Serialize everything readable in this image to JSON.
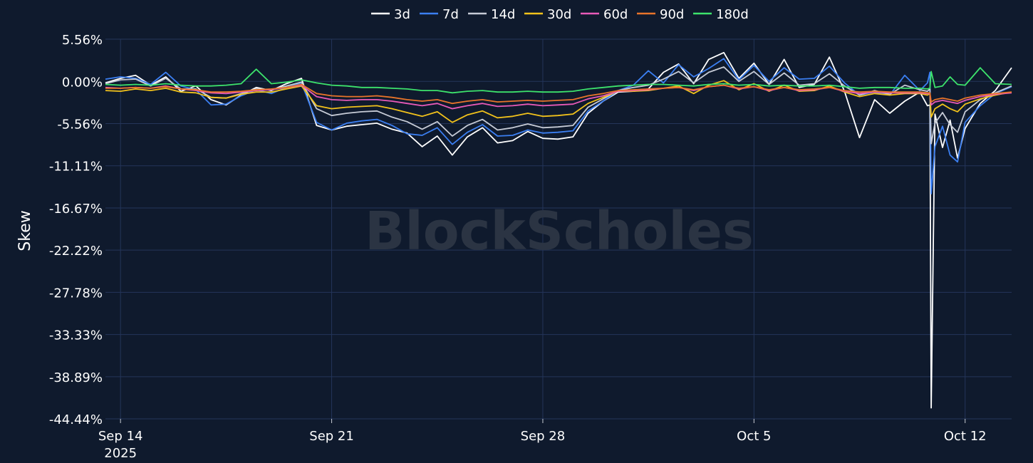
{
  "chart_data": {
    "type": "line",
    "ylabel": "Skew",
    "watermark": "BlockScholes",
    "legend_position": "top-center",
    "grid": true,
    "ylim": [
      -44.44,
      5.56
    ],
    "xlim": [
      "2025-09-13T12:00",
      "2025-10-13T13:00"
    ],
    "y_ticks": [
      {
        "value": 5.56,
        "label": "5.56%"
      },
      {
        "value": 0.0,
        "label": "0.00%"
      },
      {
        "value": -5.56,
        "label": "-5.56%"
      },
      {
        "value": -11.11,
        "label": "-11.11%"
      },
      {
        "value": -16.67,
        "label": "-16.67%"
      },
      {
        "value": -22.22,
        "label": "-22.22%"
      },
      {
        "value": -27.78,
        "label": "-27.78%"
      },
      {
        "value": -33.33,
        "label": "-33.33%"
      },
      {
        "value": -38.89,
        "label": "-38.89%"
      },
      {
        "value": -44.44,
        "label": "-44.44%"
      }
    ],
    "x_ticks": [
      {
        "value": "2025-09-14",
        "label": "Sep 14",
        "sublabel": "2025"
      },
      {
        "value": "2025-09-21",
        "label": "Sep 21"
      },
      {
        "value": "2025-09-28",
        "label": "Sep 28"
      },
      {
        "value": "2025-10-05",
        "label": "Oct 5"
      },
      {
        "value": "2025-10-12",
        "label": "Oct 12"
      }
    ],
    "x": [
      "2025-09-13T12:00",
      "2025-09-14T00:00",
      "2025-09-14T12:00",
      "2025-09-15T00:00",
      "2025-09-15T12:00",
      "2025-09-16T00:00",
      "2025-09-16T12:00",
      "2025-09-17T00:00",
      "2025-09-17T12:00",
      "2025-09-18T00:00",
      "2025-09-18T12:00",
      "2025-09-19T00:00",
      "2025-09-19T12:00",
      "2025-09-20T00:00",
      "2025-09-20T12:00",
      "2025-09-21T00:00",
      "2025-09-21T12:00",
      "2025-09-22T00:00",
      "2025-09-22T12:00",
      "2025-09-23T00:00",
      "2025-09-23T12:00",
      "2025-09-24T00:00",
      "2025-09-24T12:00",
      "2025-09-25T00:00",
      "2025-09-25T12:00",
      "2025-09-26T00:00",
      "2025-09-26T12:00",
      "2025-09-27T00:00",
      "2025-09-27T12:00",
      "2025-09-28T00:00",
      "2025-09-28T12:00",
      "2025-09-29T00:00",
      "2025-09-29T12:00",
      "2025-09-30T00:00",
      "2025-09-30T12:00",
      "2025-10-01T00:00",
      "2025-10-01T12:00",
      "2025-10-02T00:00",
      "2025-10-02T12:00",
      "2025-10-03T00:00",
      "2025-10-03T12:00",
      "2025-10-04T00:00",
      "2025-10-04T12:00",
      "2025-10-05T00:00",
      "2025-10-05T12:00",
      "2025-10-06T00:00",
      "2025-10-06T12:00",
      "2025-10-07T00:00",
      "2025-10-07T12:00",
      "2025-10-08T00:00",
      "2025-10-08T12:00",
      "2025-10-09T00:00",
      "2025-10-09T12:00",
      "2025-10-10T00:00",
      "2025-10-10T12:00",
      "2025-10-10T18:00",
      "2025-10-10T20:00",
      "2025-10-10T21:00",
      "2025-10-11T00:00",
      "2025-10-11T06:00",
      "2025-10-11T12:00",
      "2025-10-11T18:00",
      "2025-10-12T00:00",
      "2025-10-12T12:00",
      "2025-10-13T00:00",
      "2025-10-13T13:00"
    ],
    "series": [
      {
        "name": "3d",
        "color": "#ffffff",
        "values": [
          -0.2,
          0.4,
          0.8,
          -0.5,
          0.6,
          -1.3,
          -0.6,
          -2.4,
          -3.1,
          -1.8,
          -0.8,
          -1.2,
          -0.3,
          0.4,
          -5.8,
          -6.4,
          -5.9,
          -5.7,
          -5.5,
          -6.3,
          -6.8,
          -8.6,
          -7.2,
          -9.7,
          -7.3,
          -6.1,
          -8.1,
          -7.8,
          -6.6,
          -7.5,
          -7.6,
          -7.3,
          -4.2,
          -2.6,
          -1.4,
          -1.3,
          -1.0,
          1.2,
          2.3,
          -0.3,
          2.9,
          3.8,
          0.4,
          2.4,
          -0.4,
          2.9,
          -0.8,
          -0.4,
          3.2,
          -1.3,
          -7.4,
          -2.4,
          -4.2,
          -2.6,
          -1.4,
          -3.2,
          -3.1,
          -43.0,
          -4.3,
          -8.7,
          -5.1,
          -10.1,
          -6.2,
          -2.9,
          -1.2,
          1.8
        ]
      },
      {
        "name": "7d",
        "color": "#3b7ff2",
        "values": [
          0.3,
          0.6,
          0.4,
          -0.4,
          1.2,
          -0.6,
          -1.1,
          -3.1,
          -3.0,
          -1.9,
          -1.1,
          -1.6,
          -0.8,
          -0.2,
          -5.4,
          -6.4,
          -5.5,
          -5.2,
          -5.0,
          -5.8,
          -6.9,
          -7.1,
          -6.1,
          -8.3,
          -6.7,
          -5.7,
          -7.2,
          -7.1,
          -6.4,
          -6.8,
          -6.7,
          -6.5,
          -3.9,
          -2.6,
          -1.2,
          -0.5,
          1.4,
          -0.2,
          2.2,
          0.6,
          1.7,
          3.0,
          0.2,
          2.1,
          0.0,
          1.8,
          0.3,
          0.4,
          2.0,
          -0.2,
          -1.8,
          -1.4,
          -1.8,
          0.8,
          -1.2,
          -0.2,
          1.2,
          -14.8,
          -8.6,
          -5.9,
          -9.7,
          -10.6,
          -5.4,
          -3.2,
          -1.6,
          -0.7
        ]
      },
      {
        "name": "14d",
        "color": "#c6cbd6",
        "values": [
          -0.3,
          0.2,
          0.3,
          -0.6,
          0.4,
          -1.0,
          -1.0,
          -2.1,
          -2.2,
          -1.6,
          -1.0,
          -1.1,
          -0.6,
          -0.1,
          -3.6,
          -4.5,
          -4.2,
          -4.0,
          -3.9,
          -4.7,
          -5.3,
          -6.3,
          -5.3,
          -7.2,
          -5.8,
          -5.0,
          -6.4,
          -6.1,
          -5.6,
          -6.1,
          -6.0,
          -5.8,
          -3.4,
          -2.3,
          -1.2,
          -0.8,
          -0.5,
          0.3,
          1.3,
          -0.2,
          1.2,
          1.9,
          0.0,
          1.3,
          -0.4,
          1.1,
          -0.5,
          -0.3,
          1.0,
          -0.6,
          -1.8,
          -1.2,
          -1.7,
          -0.5,
          -1.1,
          -1.3,
          -1.0,
          -8.2,
          -5.5,
          -4.1,
          -5.7,
          -6.7,
          -4.0,
          -2.4,
          -1.5,
          -0.6
        ]
      },
      {
        "name": "30d",
        "color": "#f2c21b",
        "values": [
          -1.2,
          -1.3,
          -1.0,
          -1.2,
          -0.9,
          -1.4,
          -1.5,
          -2.1,
          -2.2,
          -1.7,
          -1.4,
          -1.4,
          -1.0,
          -0.6,
          -3.2,
          -3.6,
          -3.4,
          -3.3,
          -3.2,
          -3.6,
          -4.1,
          -4.6,
          -4.0,
          -5.4,
          -4.4,
          -3.9,
          -4.8,
          -4.6,
          -4.2,
          -4.6,
          -4.5,
          -4.3,
          -2.9,
          -2.1,
          -1.3,
          -1.3,
          -1.2,
          -0.9,
          -0.6,
          -1.6,
          -0.5,
          0.1,
          -1.1,
          -0.3,
          -1.3,
          -0.5,
          -1.3,
          -1.2,
          -0.6,
          -1.4,
          -2.0,
          -1.6,
          -1.8,
          -1.6,
          -1.6,
          -1.8,
          -1.6,
          -4.7,
          -3.6,
          -3.0,
          -3.6,
          -4.0,
          -3.0,
          -2.3,
          -1.8,
          -1.4
        ]
      },
      {
        "name": "60d",
        "color": "#e85ab8",
        "values": [
          -0.8,
          -0.9,
          -0.8,
          -0.9,
          -0.6,
          -1.0,
          -1.2,
          -1.5,
          -1.6,
          -1.4,
          -1.2,
          -1.1,
          -0.8,
          -0.5,
          -2.0,
          -2.4,
          -2.5,
          -2.4,
          -2.4,
          -2.6,
          -2.9,
          -3.2,
          -2.9,
          -3.6,
          -3.2,
          -2.9,
          -3.3,
          -3.2,
          -3.0,
          -3.2,
          -3.1,
          -3.0,
          -2.3,
          -1.9,
          -1.3,
          -1.2,
          -1.1,
          -0.9,
          -0.8,
          -1.2,
          -0.7,
          -0.5,
          -1.0,
          -0.7,
          -1.2,
          -0.8,
          -1.2,
          -1.1,
          -0.8,
          -1.3,
          -1.6,
          -1.4,
          -1.5,
          -1.5,
          -1.5,
          -1.6,
          -1.6,
          -3.1,
          -2.7,
          -2.5,
          -2.7,
          -2.9,
          -2.5,
          -2.0,
          -1.7,
          -1.5
        ]
      },
      {
        "name": "90d",
        "color": "#e8742a",
        "values": [
          -0.9,
          -0.9,
          -0.8,
          -0.9,
          -0.7,
          -1.0,
          -1.1,
          -1.4,
          -1.4,
          -1.3,
          -1.1,
          -1.0,
          -0.8,
          -0.4,
          -1.6,
          -1.9,
          -2.0,
          -2.0,
          -1.9,
          -2.1,
          -2.4,
          -2.6,
          -2.4,
          -2.9,
          -2.6,
          -2.4,
          -2.7,
          -2.6,
          -2.5,
          -2.6,
          -2.5,
          -2.4,
          -1.9,
          -1.6,
          -1.2,
          -1.1,
          -1.0,
          -0.9,
          -0.8,
          -1.1,
          -0.7,
          -0.5,
          -0.9,
          -0.7,
          -1.1,
          -0.8,
          -1.1,
          -1.0,
          -0.8,
          -1.2,
          -1.4,
          -1.3,
          -1.4,
          -1.4,
          -1.4,
          -1.5,
          -1.5,
          -2.7,
          -2.4,
          -2.2,
          -2.4,
          -2.6,
          -2.2,
          -1.8,
          -1.6,
          -1.4
        ]
      },
      {
        "name": "180d",
        "color": "#3de36c",
        "values": [
          -0.4,
          -0.5,
          -0.4,
          -0.5,
          -0.3,
          -0.5,
          -0.6,
          -0.6,
          -0.5,
          -0.3,
          1.6,
          -0.3,
          -0.1,
          0.2,
          -0.2,
          -0.5,
          -0.6,
          -0.8,
          -0.8,
          -0.9,
          -1.0,
          -1.2,
          -1.2,
          -1.5,
          -1.3,
          -1.2,
          -1.4,
          -1.4,
          -1.3,
          -1.4,
          -1.4,
          -1.3,
          -1.0,
          -0.8,
          -0.6,
          -0.5,
          -0.4,
          -0.4,
          -0.5,
          -0.6,
          -0.4,
          -0.3,
          -0.5,
          -0.4,
          -0.6,
          -0.5,
          -0.6,
          -0.6,
          -0.5,
          -0.7,
          -0.9,
          -0.8,
          -0.8,
          -0.9,
          -0.9,
          -1.0,
          -0.9,
          1.3,
          -0.8,
          -0.6,
          0.6,
          -0.4,
          -0.5,
          1.8,
          -0.3,
          -0.4
        ]
      }
    ]
  }
}
